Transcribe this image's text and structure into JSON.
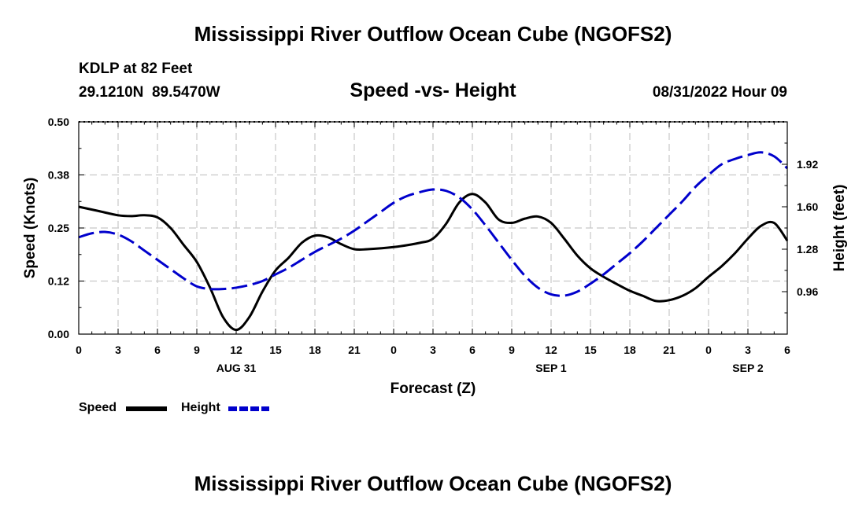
{
  "header": {
    "title_top": "Mississippi River Outflow Ocean Cube (NGOFS2)",
    "station": "KDLP at 82 Feet",
    "coords": "29.1210N  89.5470W",
    "subtitle": "Speed -vs- Height",
    "datetime": "08/31/2022 Hour 09",
    "title_bottom": "Mississippi River Outflow Ocean Cube (NGOFS2)"
  },
  "legend": {
    "speed_label": "Speed",
    "height_label": "Height"
  },
  "chart_data": {
    "type": "line",
    "title": "Speed -vs- Height",
    "xlabel": "Forecast (Z)",
    "ylabel_left": "Speed (Knots)",
    "ylabel_right": "Height (feet)",
    "x_range_hours": [
      0,
      54
    ],
    "x_tick_hours": [
      0,
      3,
      6,
      9,
      12,
      15,
      18,
      21,
      24,
      27,
      30,
      33,
      36,
      39,
      42,
      45,
      48,
      51,
      54
    ],
    "x_tick_labels": [
      "0",
      "3",
      "6",
      "9",
      "12",
      "15",
      "18",
      "21",
      "0",
      "3",
      "6",
      "9",
      "12",
      "15",
      "18",
      "21",
      "0",
      "3",
      "6"
    ],
    "date_labels": [
      {
        "hour": 12,
        "label": "AUG 31"
      },
      {
        "hour": 36,
        "label": "SEP 1"
      },
      {
        "hour": 51,
        "label": "SEP 2"
      }
    ],
    "ylim_left": [
      0,
      0.5
    ],
    "y_ticks_left": [
      0,
      0.125,
      0.25,
      0.375,
      0.5
    ],
    "y_tick_labels_left": [
      "0.00",
      "0.12",
      "0.25",
      "0.38",
      "0.50"
    ],
    "ylim_right": [
      0.64,
      2.24
    ],
    "y_ticks_right": [
      0.96,
      1.28,
      1.6,
      1.92
    ],
    "y_tick_labels_right": [
      "0.96",
      "1.28",
      "1.60",
      "1.92"
    ],
    "grid": true,
    "series": [
      {
        "name": "Speed",
        "axis": "left",
        "color": "#000000",
        "dash": "solid",
        "x": [
          0,
          1.5,
          3,
          4,
          5,
          6,
          7,
          8,
          9,
          10,
          11,
          12,
          13,
          14,
          15,
          16,
          17,
          18,
          19,
          20,
          21,
          22,
          24,
          26,
          27,
          28,
          29,
          30,
          31,
          32,
          33,
          34,
          35,
          36,
          37,
          38,
          39,
          40,
          41,
          42,
          43,
          44,
          45,
          46,
          47,
          48,
          49,
          50,
          51,
          52,
          53,
          54
        ],
        "values": [
          0.3,
          0.29,
          0.28,
          0.278,
          0.28,
          0.275,
          0.25,
          0.21,
          0.17,
          0.11,
          0.04,
          0.01,
          0.04,
          0.1,
          0.15,
          0.18,
          0.215,
          0.232,
          0.228,
          0.212,
          0.2,
          0.2,
          0.205,
          0.215,
          0.225,
          0.26,
          0.31,
          0.33,
          0.31,
          0.27,
          0.262,
          0.272,
          0.277,
          0.262,
          0.225,
          0.185,
          0.155,
          0.135,
          0.118,
          0.102,
          0.09,
          0.078,
          0.08,
          0.09,
          0.108,
          0.135,
          0.16,
          0.19,
          0.225,
          0.255,
          0.262,
          0.22
        ]
      },
      {
        "name": "Height",
        "axis": "right",
        "color": "#0000cc",
        "dash": "dashed",
        "x": [
          0,
          1,
          2,
          3,
          4,
          5,
          6,
          7,
          8,
          9,
          10,
          11,
          12,
          13,
          14,
          15,
          16,
          17,
          18,
          19,
          20,
          21,
          22,
          23,
          24,
          25,
          26,
          27,
          28,
          29,
          30,
          31,
          32,
          33,
          34,
          35,
          36,
          37,
          38,
          39,
          40,
          41,
          42,
          43,
          44,
          45,
          46,
          47,
          48,
          49,
          50,
          51,
          52,
          53,
          54
        ],
        "values": [
          1.37,
          1.4,
          1.41,
          1.39,
          1.34,
          1.27,
          1.2,
          1.13,
          1.06,
          1.0,
          0.98,
          0.98,
          0.99,
          1.01,
          1.04,
          1.09,
          1.14,
          1.2,
          1.26,
          1.31,
          1.36,
          1.42,
          1.49,
          1.56,
          1.63,
          1.68,
          1.71,
          1.73,
          1.72,
          1.67,
          1.58,
          1.46,
          1.33,
          1.2,
          1.08,
          0.99,
          0.94,
          0.93,
          0.96,
          1.02,
          1.09,
          1.17,
          1.25,
          1.34,
          1.44,
          1.54,
          1.64,
          1.75,
          1.84,
          1.92,
          1.96,
          1.99,
          2.01,
          1.98,
          1.89
        ]
      }
    ]
  }
}
